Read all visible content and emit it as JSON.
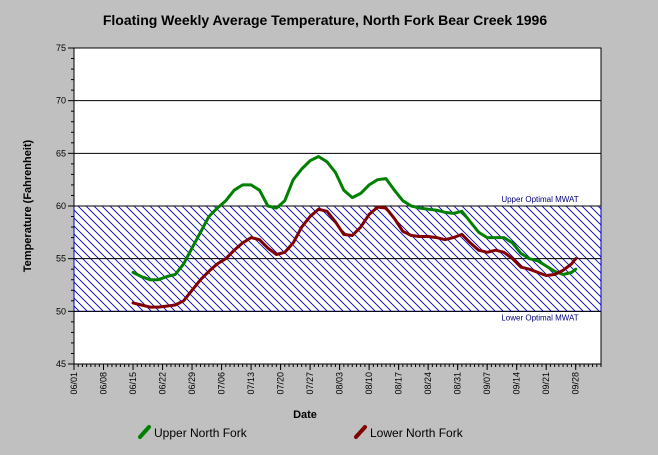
{
  "chart_data": {
    "type": "line",
    "title": "Floating Weekly Average Temperature, North Fork Bear Creek 1996",
    "xlabel": "Date",
    "ylabel": "Temperature (Fahrenheit)",
    "ylim": [
      45,
      75
    ],
    "y_ticks": [
      "45",
      "50",
      "55",
      "60",
      "65",
      "70",
      "75"
    ],
    "x_range": [
      "1996-06-01",
      "1996-10-04"
    ],
    "x_ticks": [
      "06/01",
      "06/08",
      "06/15",
      "06/22",
      "06/29",
      "07/06",
      "07/13",
      "07/20",
      "07/27",
      "08/03",
      "08/10",
      "08/17",
      "08/24",
      "08/31",
      "09/07",
      "09/14",
      "09/21",
      "09/28"
    ],
    "grid": "horizontal major lines at 55, 60, 65, 70, 75",
    "band": {
      "low": 50,
      "high": 60,
      "upper_label": "Upper Optimal MWAT",
      "lower_label": "Lower Optimal MWAT",
      "color": "#0000c0",
      "fill": "hatched"
    },
    "series": [
      {
        "name": "Upper North Fork",
        "color": "#008000",
        "points": [
          [
            "1996-06-15",
            53.7
          ],
          [
            "1996-06-17",
            53.3
          ],
          [
            "1996-06-19",
            53.0
          ],
          [
            "1996-06-21",
            53.0
          ],
          [
            "1996-06-23",
            53.3
          ],
          [
            "1996-06-25",
            53.5
          ],
          [
            "1996-06-27",
            54.5
          ],
          [
            "1996-06-29",
            56.0
          ],
          [
            "1996-07-01",
            57.5
          ],
          [
            "1996-07-03",
            59.0
          ],
          [
            "1996-07-05",
            59.8
          ],
          [
            "1996-07-07",
            60.5
          ],
          [
            "1996-07-09",
            61.5
          ],
          [
            "1996-07-11",
            62.0
          ],
          [
            "1996-07-13",
            62.0
          ],
          [
            "1996-07-15",
            61.5
          ],
          [
            "1996-07-17",
            60.0
          ],
          [
            "1996-07-19",
            59.8
          ],
          [
            "1996-07-21",
            60.5
          ],
          [
            "1996-07-23",
            62.5
          ],
          [
            "1996-07-25",
            63.5
          ],
          [
            "1996-07-27",
            64.3
          ],
          [
            "1996-07-29",
            64.7
          ],
          [
            "1996-07-31",
            64.2
          ],
          [
            "1996-08-02",
            63.2
          ],
          [
            "1996-08-04",
            61.5
          ],
          [
            "1996-08-06",
            60.8
          ],
          [
            "1996-08-08",
            61.2
          ],
          [
            "1996-08-10",
            62.0
          ],
          [
            "1996-08-12",
            62.5
          ],
          [
            "1996-08-14",
            62.6
          ],
          [
            "1996-08-16",
            61.5
          ],
          [
            "1996-08-18",
            60.5
          ],
          [
            "1996-08-20",
            60.0
          ],
          [
            "1996-08-22",
            59.8
          ],
          [
            "1996-08-24",
            59.7
          ],
          [
            "1996-08-26",
            59.6
          ],
          [
            "1996-08-28",
            59.4
          ],
          [
            "1996-08-30",
            59.3
          ],
          [
            "1996-09-01",
            59.5
          ],
          [
            "1996-09-03",
            58.5
          ],
          [
            "1996-09-05",
            57.5
          ],
          [
            "1996-09-07",
            57.0
          ],
          [
            "1996-09-09",
            57.0
          ],
          [
            "1996-09-11",
            57.0
          ],
          [
            "1996-09-13",
            56.5
          ],
          [
            "1996-09-15",
            55.5
          ],
          [
            "1996-09-17",
            55.0
          ],
          [
            "1996-09-19",
            54.8
          ],
          [
            "1996-09-21",
            54.3
          ],
          [
            "1996-09-23",
            53.8
          ],
          [
            "1996-09-25",
            53.5
          ],
          [
            "1996-09-27",
            53.7
          ],
          [
            "1996-09-28",
            54.0
          ]
        ]
      },
      {
        "name": "Lower North Fork",
        "color": "#800000",
        "points": [
          [
            "1996-06-15",
            50.8
          ],
          [
            "1996-06-17",
            50.6
          ],
          [
            "1996-06-19",
            50.4
          ],
          [
            "1996-06-21",
            50.4
          ],
          [
            "1996-06-23",
            50.5
          ],
          [
            "1996-06-25",
            50.6
          ],
          [
            "1996-06-27",
            51.0
          ],
          [
            "1996-06-29",
            52.0
          ],
          [
            "1996-07-01",
            53.0
          ],
          [
            "1996-07-03",
            53.8
          ],
          [
            "1996-07-05",
            54.5
          ],
          [
            "1996-07-07",
            55.0
          ],
          [
            "1996-07-09",
            55.8
          ],
          [
            "1996-07-11",
            56.5
          ],
          [
            "1996-07-13",
            57.0
          ],
          [
            "1996-07-15",
            56.8
          ],
          [
            "1996-07-17",
            56.0
          ],
          [
            "1996-07-19",
            55.4
          ],
          [
            "1996-07-21",
            55.6
          ],
          [
            "1996-07-23",
            56.5
          ],
          [
            "1996-07-25",
            58.0
          ],
          [
            "1996-07-27",
            59.0
          ],
          [
            "1996-07-29",
            59.7
          ],
          [
            "1996-07-31",
            59.5
          ],
          [
            "1996-08-02",
            58.5
          ],
          [
            "1996-08-04",
            57.3
          ],
          [
            "1996-08-06",
            57.2
          ],
          [
            "1996-08-08",
            58.0
          ],
          [
            "1996-08-10",
            59.2
          ],
          [
            "1996-08-12",
            59.9
          ],
          [
            "1996-08-14",
            59.8
          ],
          [
            "1996-08-16",
            58.8
          ],
          [
            "1996-08-18",
            57.6
          ],
          [
            "1996-08-20",
            57.2
          ],
          [
            "1996-08-22",
            57.1
          ],
          [
            "1996-08-24",
            57.1
          ],
          [
            "1996-08-26",
            57.0
          ],
          [
            "1996-08-28",
            56.8
          ],
          [
            "1996-08-30",
            57.0
          ],
          [
            "1996-09-01",
            57.3
          ],
          [
            "1996-09-03",
            56.5
          ],
          [
            "1996-09-05",
            55.8
          ],
          [
            "1996-09-07",
            55.6
          ],
          [
            "1996-09-09",
            55.8
          ],
          [
            "1996-09-11",
            55.6
          ],
          [
            "1996-09-13",
            55.0
          ],
          [
            "1996-09-15",
            54.2
          ],
          [
            "1996-09-17",
            54.0
          ],
          [
            "1996-09-19",
            53.7
          ],
          [
            "1996-09-21",
            53.4
          ],
          [
            "1996-09-23",
            53.5
          ],
          [
            "1996-09-25",
            53.9
          ],
          [
            "1996-09-27",
            54.5
          ],
          [
            "1996-09-28",
            55.0
          ]
        ]
      }
    ],
    "legend": "bottom"
  }
}
